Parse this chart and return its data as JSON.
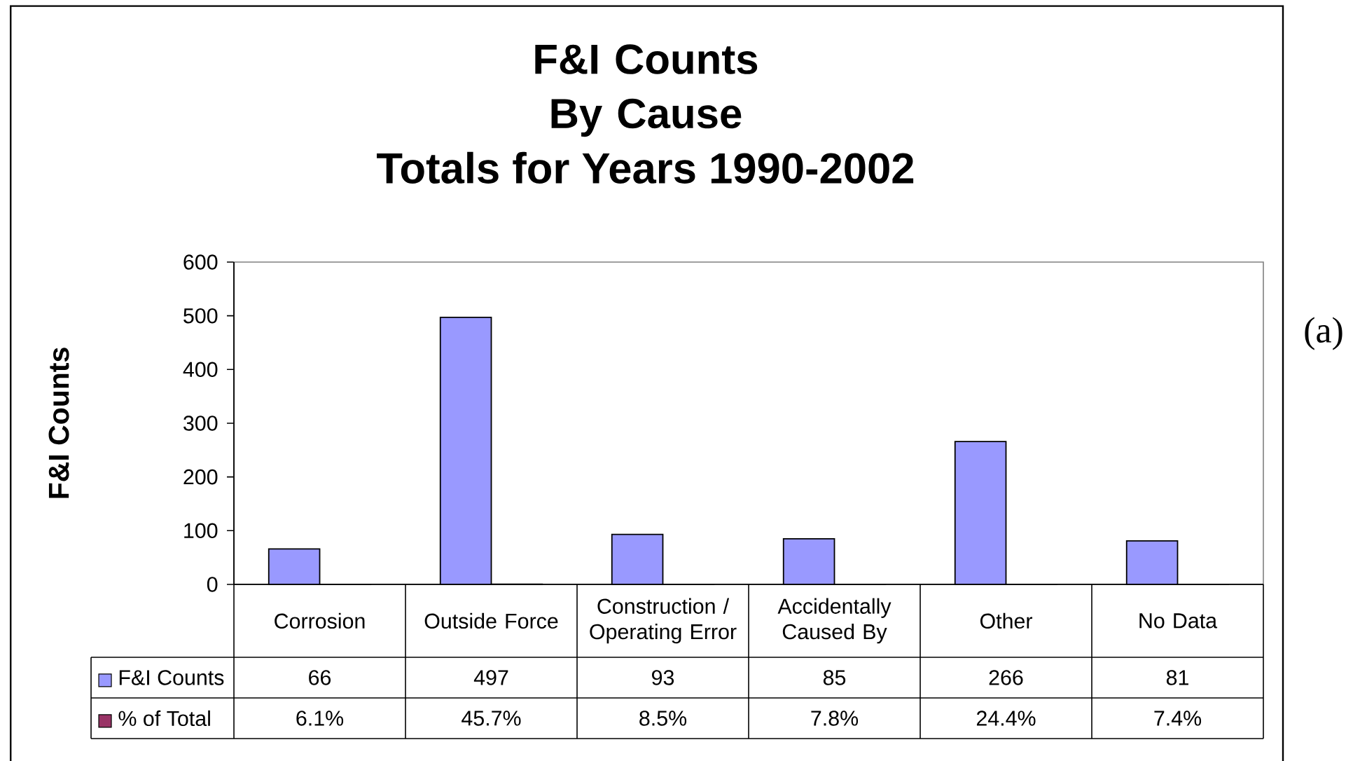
{
  "chart_data": {
    "type": "bar",
    "title": "F&I Counts By Cause",
    "subtitle": "Totals for Years 1990-2002",
    "ylabel": "F&I Counts",
    "categories": [
      "Corrosion",
      "Outside Force",
      "Construction / Operating Error",
      "Accidentally Caused By",
      "Other",
      "No Data"
    ],
    "series": [
      {
        "name": "F&I Counts",
        "color": "#9999ff",
        "values": [
          66,
          497,
          93,
          85,
          266,
          81
        ],
        "value_labels": [
          "66",
          "497",
          "93",
          "85",
          "266",
          "81"
        ]
      },
      {
        "name": "% of Total",
        "color": "#993366",
        "values": [
          0.061,
          0.457,
          0.085,
          0.078,
          0.244,
          0.074
        ],
        "value_labels": [
          "6.1%",
          "45.7%",
          "8.5%",
          "7.8%",
          "24.4%",
          "7.4%"
        ]
      }
    ],
    "ylim": [
      0,
      600
    ],
    "yticks": [
      0,
      100,
      200,
      300,
      400,
      500,
      600
    ],
    "legend": "bottom",
    "annotations": [
      "(a)"
    ]
  }
}
